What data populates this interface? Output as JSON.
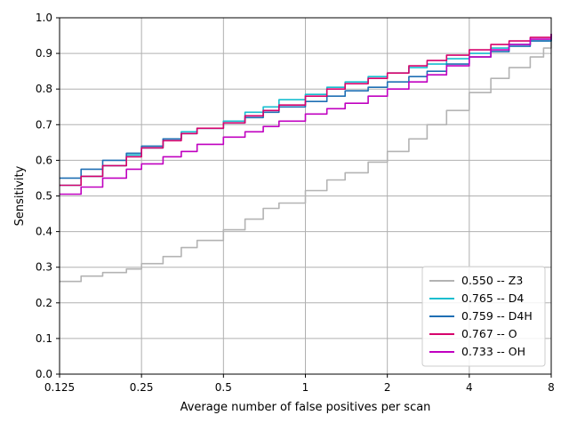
{
  "chart_data": {
    "type": "line",
    "title": "",
    "xlabel": "Average number of false positives per scan",
    "ylabel": "Sensitivity",
    "x_scale": "log2",
    "xlim": [
      0.125,
      8
    ],
    "ylim": [
      0.0,
      1.0
    ],
    "xticks": [
      0.125,
      0.25,
      0.5,
      1,
      2,
      4,
      8
    ],
    "xtick_labels": [
      "0.125",
      "0.25",
      "0.5",
      "1",
      "2",
      "4",
      "8"
    ],
    "yticks": [
      0.0,
      0.1,
      0.2,
      0.3,
      0.4,
      0.5,
      0.6,
      0.7,
      0.8,
      0.9,
      1.0
    ],
    "ytick_labels": [
      "0.0",
      "0.1",
      "0.2",
      "0.3",
      "0.4",
      "0.5",
      "0.6",
      "0.7",
      "0.8",
      "0.9",
      "1.0"
    ],
    "grid": true,
    "legend_position": "lower-right",
    "series": [
      {
        "name": "0.550 -- Z3",
        "color": "#b3b3b3",
        "x": [
          0.125,
          0.15,
          0.18,
          0.22,
          0.25,
          0.3,
          0.35,
          0.4,
          0.5,
          0.6,
          0.7,
          0.8,
          1.0,
          1.2,
          1.4,
          1.7,
          2.0,
          2.4,
          2.8,
          3.3,
          4.0,
          4.8,
          5.6,
          6.7,
          7.5,
          8.0
        ],
        "values": [
          0.26,
          0.275,
          0.285,
          0.295,
          0.31,
          0.33,
          0.355,
          0.375,
          0.405,
          0.435,
          0.465,
          0.48,
          0.515,
          0.545,
          0.565,
          0.595,
          0.625,
          0.66,
          0.7,
          0.74,
          0.79,
          0.83,
          0.86,
          0.89,
          0.915,
          0.945
        ]
      },
      {
        "name": "0.765 -- D4",
        "color": "#17becf",
        "x": [
          0.125,
          0.15,
          0.18,
          0.22,
          0.25,
          0.3,
          0.35,
          0.4,
          0.5,
          0.6,
          0.7,
          0.8,
          1.0,
          1.2,
          1.4,
          1.7,
          2.0,
          2.4,
          2.8,
          3.3,
          4.0,
          4.8,
          5.6,
          6.7,
          8.0
        ],
        "values": [
          0.53,
          0.555,
          0.585,
          0.615,
          0.635,
          0.66,
          0.68,
          0.69,
          0.71,
          0.735,
          0.75,
          0.77,
          0.785,
          0.805,
          0.82,
          0.835,
          0.845,
          0.86,
          0.87,
          0.885,
          0.9,
          0.915,
          0.925,
          0.935,
          0.95
        ]
      },
      {
        "name": "0.759 -- D4H",
        "color": "#1f6fb4",
        "x": [
          0.125,
          0.15,
          0.18,
          0.22,
          0.25,
          0.3,
          0.35,
          0.4,
          0.5,
          0.6,
          0.7,
          0.8,
          1.0,
          1.2,
          1.4,
          1.7,
          2.0,
          2.4,
          2.8,
          3.3,
          4.0,
          4.8,
          5.6,
          6.7,
          8.0
        ],
        "values": [
          0.55,
          0.575,
          0.6,
          0.62,
          0.64,
          0.66,
          0.675,
          0.69,
          0.705,
          0.72,
          0.735,
          0.75,
          0.765,
          0.78,
          0.795,
          0.805,
          0.82,
          0.835,
          0.85,
          0.87,
          0.89,
          0.905,
          0.92,
          0.935,
          0.955
        ]
      },
      {
        "name": "0.767 -- O",
        "color": "#d6006c",
        "x": [
          0.125,
          0.15,
          0.18,
          0.22,
          0.25,
          0.3,
          0.35,
          0.4,
          0.5,
          0.6,
          0.7,
          0.8,
          1.0,
          1.2,
          1.4,
          1.7,
          2.0,
          2.4,
          2.8,
          3.3,
          4.0,
          4.8,
          5.6,
          6.7,
          8.0
        ],
        "values": [
          0.53,
          0.555,
          0.585,
          0.61,
          0.635,
          0.655,
          0.675,
          0.69,
          0.705,
          0.725,
          0.74,
          0.755,
          0.78,
          0.8,
          0.815,
          0.83,
          0.845,
          0.865,
          0.88,
          0.895,
          0.91,
          0.925,
          0.935,
          0.945,
          0.955
        ]
      },
      {
        "name": "0.733 -- OH",
        "color": "#c000c0",
        "x": [
          0.125,
          0.15,
          0.18,
          0.22,
          0.25,
          0.3,
          0.35,
          0.4,
          0.5,
          0.6,
          0.7,
          0.8,
          1.0,
          1.2,
          1.4,
          1.7,
          2.0,
          2.4,
          2.8,
          3.3,
          4.0,
          4.8,
          5.6,
          6.7,
          8.0
        ],
        "values": [
          0.505,
          0.525,
          0.55,
          0.575,
          0.59,
          0.61,
          0.625,
          0.645,
          0.665,
          0.68,
          0.695,
          0.71,
          0.73,
          0.745,
          0.76,
          0.78,
          0.8,
          0.82,
          0.84,
          0.865,
          0.89,
          0.91,
          0.925,
          0.94,
          0.955
        ]
      }
    ]
  }
}
